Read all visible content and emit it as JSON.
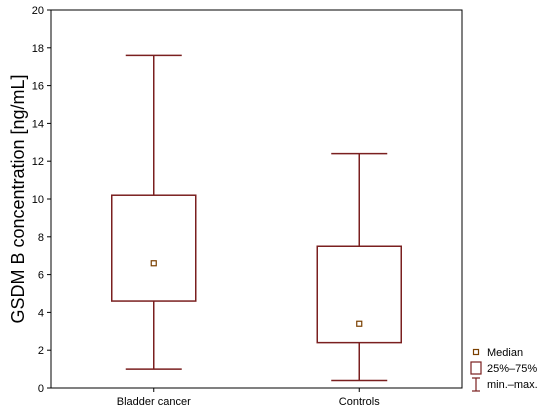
{
  "chart_data": {
    "type": "box",
    "title": "",
    "xlabel": "",
    "ylabel": "GSDM B concentration [ng/mL]",
    "ylim": [
      0,
      20
    ],
    "yticks": [
      0,
      2,
      4,
      6,
      8,
      10,
      12,
      14,
      16,
      18,
      20
    ],
    "grid": false,
    "legend_position": "bottom-right-outside",
    "categories": [
      "Bladder cancer",
      "Controls"
    ],
    "boxes": [
      {
        "category": "Bladder cancer",
        "min": 1.0,
        "q1": 4.6,
        "median": 6.6,
        "q3": 10.2,
        "max": 17.6
      },
      {
        "category": "Controls",
        "min": 0.4,
        "q1": 2.4,
        "median": 3.4,
        "q3": 7.5,
        "max": 12.4
      }
    ],
    "legend": [
      {
        "key": "median",
        "label": "Median"
      },
      {
        "key": "box",
        "label": "25%–75%"
      },
      {
        "key": "whisker",
        "label": "min.–max."
      }
    ],
    "colors": {
      "box": "#7a1f1f",
      "median_marker": "#7a3f00",
      "axis": "#000000"
    }
  }
}
